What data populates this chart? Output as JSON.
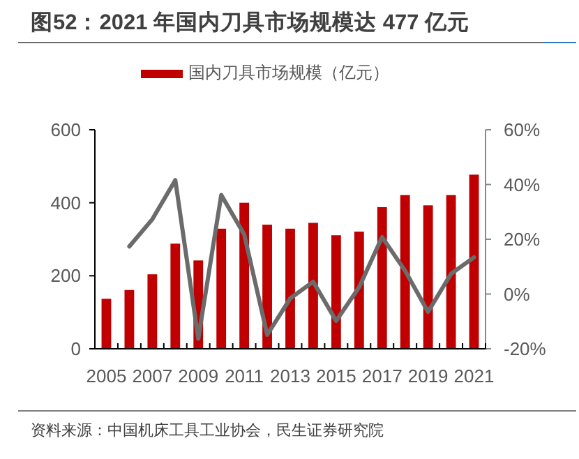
{
  "chart_data": {
    "type": "bar",
    "title": "图52：2021 年国内刀具市场规模达 477 亿元",
    "categories": [
      "2005",
      null,
      "2007",
      null,
      "2009",
      null,
      "2011",
      null,
      "2013",
      null,
      "2015",
      null,
      "2017",
      null,
      "2019",
      null,
      "2021"
    ],
    "series": [
      {
        "name": "国内刀具市场规模（亿元）",
        "color": "#c00000",
        "values": [
          137,
          161,
          204,
          288,
          242,
          329,
          400,
          340,
          329,
          345,
          311,
          321,
          388,
          421,
          393,
          421,
          477
        ]
      },
      {
        "type": "line",
        "axis": "y2",
        "color": "#6b6b6b",
        "values": [
          null,
          17.4,
          27.3,
          41.6,
          -16.3,
          36.2,
          21.7,
          -14.9,
          -1.6,
          4.5,
          -9.8,
          2.5,
          20.8,
          8.5,
          -6.5,
          7.4,
          13.4
        ]
      }
    ],
    "ylim": [
      0,
      600
    ],
    "yticks": [
      0,
      200,
      400,
      600
    ],
    "y2lim": [
      -20,
      60
    ],
    "y2ticks": [
      {
        "value": -20,
        "label": "-20%"
      },
      {
        "value": 0,
        "label": "0%"
      },
      {
        "value": 20,
        "label": "20%"
      },
      {
        "value": 40,
        "label": "40%"
      },
      {
        "value": 60,
        "label": "60%"
      }
    ],
    "legend": "top",
    "annotations": [
      "资料来源：中国机床工具工业协会，民生证券研究院"
    ]
  }
}
